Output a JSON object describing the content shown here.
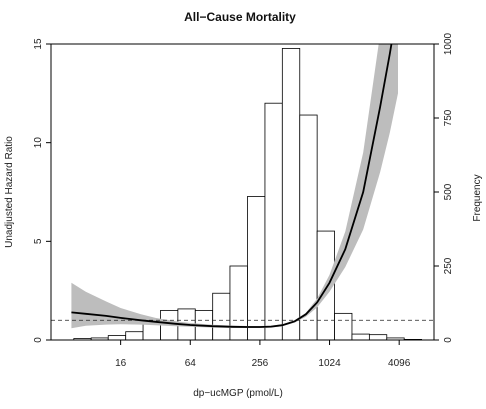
{
  "chart_data": {
    "type": "line",
    "title": "All−Cause Mortality",
    "xlabel": "dp−ucMGP (pmol/L)",
    "ylabel": "Unadjusted Hazard Ratio",
    "y2label": "Frequency",
    "x_scale": "log2",
    "xlim": [
      4,
      8192
    ],
    "ylim": [
      0,
      15
    ],
    "y2lim": [
      0,
      1000
    ],
    "x_ticks": [
      16,
      64,
      256,
      1024,
      4096
    ],
    "y_ticks": [
      0,
      5,
      10,
      15
    ],
    "y2_ticks": [
      0,
      250,
      500,
      750,
      1000
    ],
    "reference_line": {
      "y": 1,
      "style": "dashed"
    },
    "histogram": {
      "name": "Frequency",
      "bin_edges": [
        6.3,
        8.9,
        12.5,
        17.7,
        25,
        35.4,
        50,
        70.7,
        100,
        141,
        200,
        283,
        400,
        566,
        800,
        1131,
        1600,
        2263,
        3200,
        4525,
        6400
      ],
      "counts": [
        5,
        7,
        15,
        28,
        55,
        100,
        105,
        100,
        158,
        250,
        485,
        800,
        985,
        760,
        368,
        90,
        20,
        18,
        7,
        2
      ]
    },
    "series": [
      {
        "type": "line",
        "x": [
          6,
          8,
          12,
          16,
          24,
          32,
          48,
          64,
          100,
          150,
          200,
          256,
          320,
          400,
          512,
          640,
          800,
          1024,
          1400,
          2000,
          2800,
          3400,
          4000
        ],
        "values": [
          1.4,
          1.33,
          1.22,
          1.12,
          1.0,
          0.92,
          0.82,
          0.76,
          0.7,
          0.67,
          0.66,
          0.66,
          0.68,
          0.75,
          0.95,
          1.3,
          1.9,
          2.9,
          4.6,
          7.5,
          11.8,
          14.5,
          17
        ]
      },
      {
        "type": "confidence_band",
        "x": [
          6,
          8,
          12,
          16,
          24,
          32,
          48,
          64,
          100,
          150,
          200,
          256,
          320,
          400,
          512,
          640,
          800,
          1024,
          1400,
          2000,
          2800,
          3400,
          4000
        ],
        "upper": [
          2.9,
          2.45,
          1.95,
          1.62,
          1.3,
          1.12,
          0.95,
          0.86,
          0.77,
          0.73,
          0.71,
          0.71,
          0.73,
          0.8,
          1.0,
          1.38,
          2.1,
          3.3,
          5.5,
          9.5,
          15.5,
          18.5,
          22
        ],
        "lower": [
          0.6,
          0.72,
          0.78,
          0.8,
          0.78,
          0.75,
          0.7,
          0.67,
          0.63,
          0.61,
          0.61,
          0.61,
          0.63,
          0.7,
          0.88,
          1.18,
          1.65,
          2.45,
          3.7,
          5.6,
          8.5,
          10.5,
          12.5
        ]
      }
    ]
  }
}
